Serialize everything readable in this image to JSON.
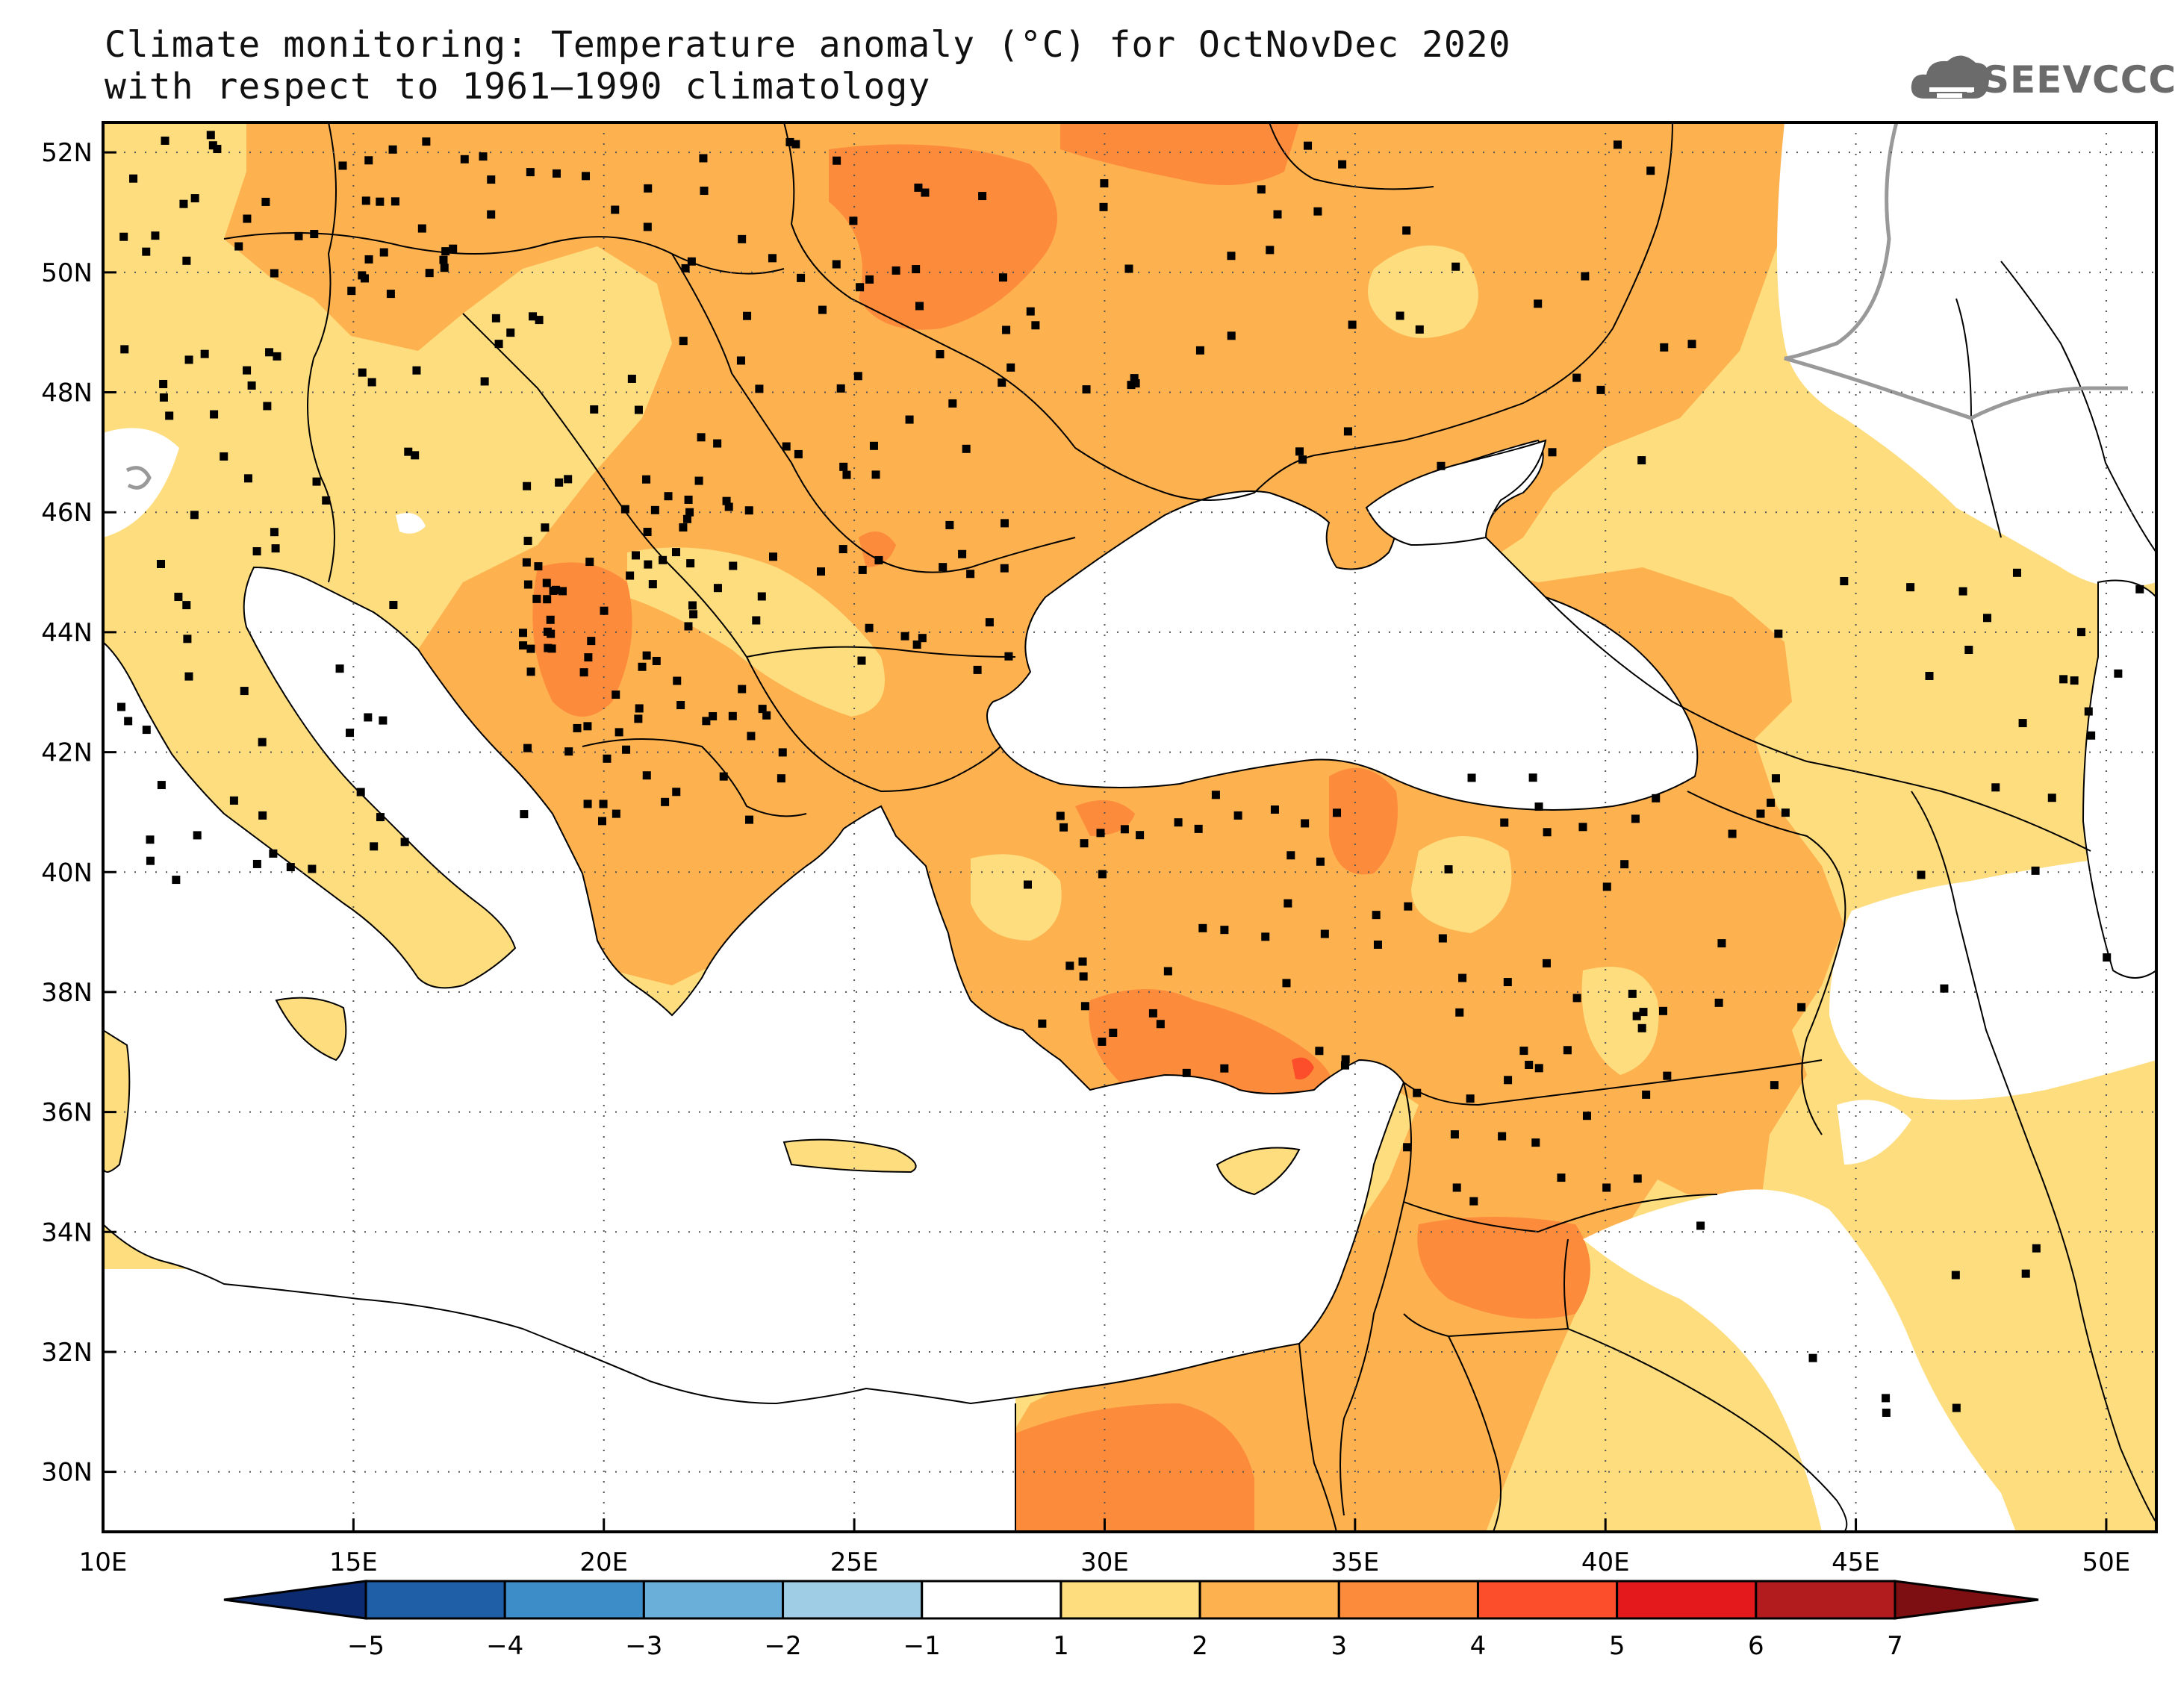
{
  "title": {
    "line1": "Climate monitoring: Temperature anomaly (°C) for OctNovDec 2020",
    "line2": "with respect to 1961–1990 climatology"
  },
  "logo": {
    "text": "SEEVCCC",
    "icon": "cloud-icon"
  },
  "axes": {
    "x_ticks": [
      "10E",
      "15E",
      "20E",
      "25E",
      "30E",
      "35E",
      "40E",
      "45E",
      "50E"
    ],
    "y_ticks": [
      "52N",
      "50N",
      "48N",
      "46N",
      "44N",
      "42N",
      "40N",
      "38N",
      "36N",
      "34N",
      "32N",
      "30N"
    ],
    "lon_range": [
      10,
      51
    ],
    "lat_range": [
      29,
      52.5
    ],
    "grid": "dotted"
  },
  "colorbar": {
    "labels": [
      "−5",
      "−4",
      "−3",
      "−2",
      "−1",
      "1",
      "2",
      "3",
      "4",
      "5",
      "6",
      "7"
    ],
    "colors": [
      "#0b2a6f",
      "#1f5fa8",
      "#3d8dc9",
      "#6aafd9",
      "#a0cde6",
      "#ffffff",
      "#fedd7f",
      "#fdb14f",
      "#fd8b3c",
      "#fc4e2a",
      "#e3191c",
      "#b21c1e",
      "#7d0f12"
    ]
  },
  "map_colors": {
    "sea": "#ffffff",
    "anomaly_1_2": "#fedd7f",
    "anomaly_2_3": "#fdb14f",
    "anomaly_3_4": "#fd8b3c",
    "anomaly_4_5": "#fc4e2a",
    "border": "#000000",
    "lake": "#999999"
  }
}
